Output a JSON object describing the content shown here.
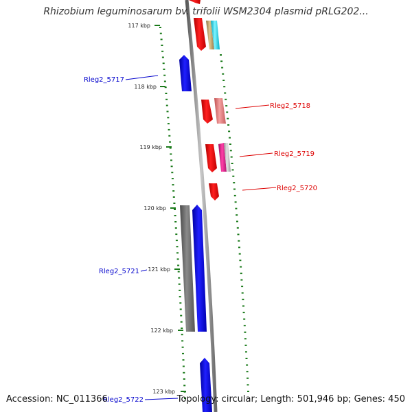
{
  "title": "Rhizobium leguminosarum bv. trifolii WSM2304 plasmid pRLG202...",
  "footer": {
    "accession": "Accession: NC_011366",
    "summary": "Topology: circular; Length: 501,946 bp; Genes: 450"
  },
  "scale_ticks": [
    "117 kbp",
    "118 kbp",
    "119 kbp",
    "120 kbp",
    "121 kbp",
    "122 kbp",
    "123 kbp"
  ],
  "gene_labels": [
    "Rleg2_5717",
    "Rleg2_5718",
    "Rleg2_5719",
    "Rleg2_5720",
    "Rleg2_5721",
    "Rleg2_5722"
  ],
  "colors": {
    "background": "#ffffff",
    "backbone": "#8c8c8c",
    "tick_marks": "#1a7a1a",
    "gene_red": "#ff0000",
    "gene_blue": "#0000ff",
    "gene_gray": "#707070",
    "gene_pink": "#f08080",
    "gene_cyan": "#00e5ff",
    "gene_tan": "#c8a96e",
    "gene_magenta": "#e0218a",
    "label_blue": "#0000cc",
    "label_red": "#dd0000"
  }
}
